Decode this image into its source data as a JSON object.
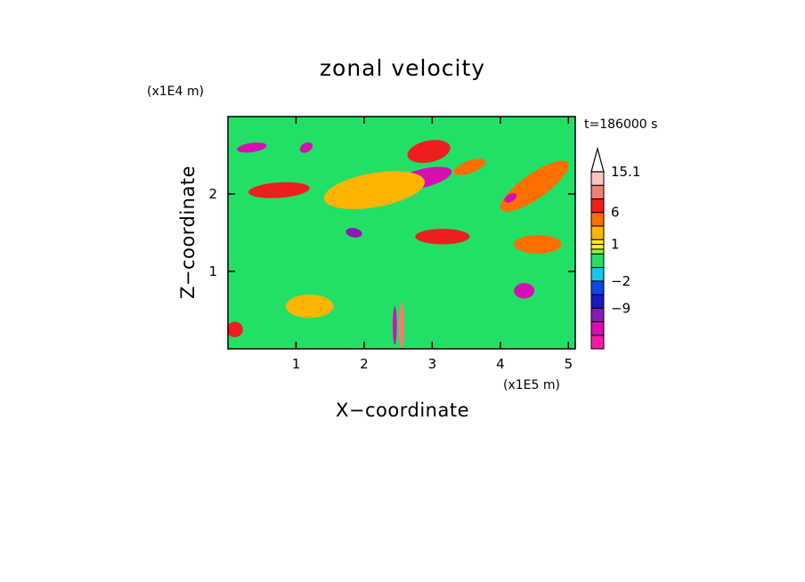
{
  "chart_data": {
    "type": "heatmap",
    "title": "zonal velocity",
    "xlabel": "X−coordinate",
    "ylabel": "Z−coordinate",
    "x_scale_label": "(x1E5 m)",
    "y_scale_label": "(x1E4 m)",
    "time_label": "t=186000 s",
    "xlim": [
      0,
      5.1
    ],
    "ylim": [
      0,
      3.0
    ],
    "x_ticks": [
      1,
      2,
      3,
      4,
      5
    ],
    "x_tick_labels": [
      "1",
      "2",
      "3",
      "4",
      "5"
    ],
    "y_ticks": [
      1,
      2
    ],
    "y_tick_labels": [
      "1",
      "2"
    ],
    "colorbar": {
      "levels": [
        -15,
        -12,
        -9,
        -6,
        -2,
        -1,
        0,
        0.5,
        1,
        2,
        3,
        6,
        9,
        12,
        15.1
      ],
      "colors": [
        "#ff1aa8",
        "#d60fb4",
        "#8a1ab4",
        "#1a18c0",
        "#0a48e8",
        "#16c8ee",
        "#22e066",
        "#8cf03c",
        "#f0f814",
        "#fff000",
        "#ffb400",
        "#ff6e00",
        "#ef1e1e",
        "#f08070",
        "#f8c4c0"
      ],
      "labels": [
        {
          "value": -9,
          "text": "−9"
        },
        {
          "value": -2,
          "text": "−2"
        },
        {
          "value": 1,
          "text": "1"
        },
        {
          "value": 6,
          "text": "6"
        },
        {
          "value": 15.1,
          "text": "15.1"
        }
      ]
    },
    "field_features": [
      {
        "x": 2.95,
        "z": 2.55,
        "u": 8,
        "rx": 0.32,
        "rz": 0.14,
        "rot": -12
      },
      {
        "x": 2.85,
        "z": 2.2,
        "u": -12,
        "rx": 0.45,
        "rz": 0.12,
        "rot": -14
      },
      {
        "x": 2.15,
        "z": 2.05,
        "u": 3,
        "rx": 0.75,
        "rz": 0.22,
        "rot": -10
      },
      {
        "x": 0.75,
        "z": 2.05,
        "u": 8,
        "rx": 0.45,
        "rz": 0.1,
        "rot": -4
      },
      {
        "x": 3.15,
        "z": 1.45,
        "u": 7,
        "rx": 0.4,
        "rz": 0.1,
        "rot": 0
      },
      {
        "x": 1.85,
        "z": 1.5,
        "u": -11,
        "rx": 0.12,
        "rz": 0.06,
        "rot": 10
      },
      {
        "x": 0.35,
        "z": 2.6,
        "u": -12,
        "rx": 0.22,
        "rz": 0.06,
        "rot": -8
      },
      {
        "x": 1.15,
        "z": 2.6,
        "u": -12,
        "rx": 0.1,
        "rz": 0.06,
        "rot": -30
      },
      {
        "x": 3.55,
        "z": 2.35,
        "u": 5,
        "rx": 0.25,
        "rz": 0.08,
        "rot": -20
      },
      {
        "x": 4.5,
        "z": 2.1,
        "u": 4,
        "rx": 0.6,
        "rz": 0.16,
        "rot": -35
      },
      {
        "x": 4.15,
        "z": 1.95,
        "u": -12,
        "rx": 0.1,
        "rz": 0.05,
        "rot": -30
      },
      {
        "x": 4.55,
        "z": 1.35,
        "u": 6,
        "rx": 0.35,
        "rz": 0.12,
        "rot": 0
      },
      {
        "x": 4.35,
        "z": 0.75,
        "u": -12,
        "rx": 0.15,
        "rz": 0.1,
        "rot": 0
      },
      {
        "x": 2.55,
        "z": 0.3,
        "u": 12,
        "rx": 0.04,
        "rz": 0.3,
        "rot": 0
      },
      {
        "x": 2.45,
        "z": 0.3,
        "u": -12,
        "rx": 0.03,
        "rz": 0.25,
        "rot": 0
      },
      {
        "x": 0.1,
        "z": 0.25,
        "u": 8,
        "rx": 0.12,
        "rz": 0.1,
        "rot": 0
      },
      {
        "x": 1.2,
        "z": 0.55,
        "u": 3,
        "rx": 0.35,
        "rz": 0.15,
        "rot": 0
      }
    ]
  }
}
